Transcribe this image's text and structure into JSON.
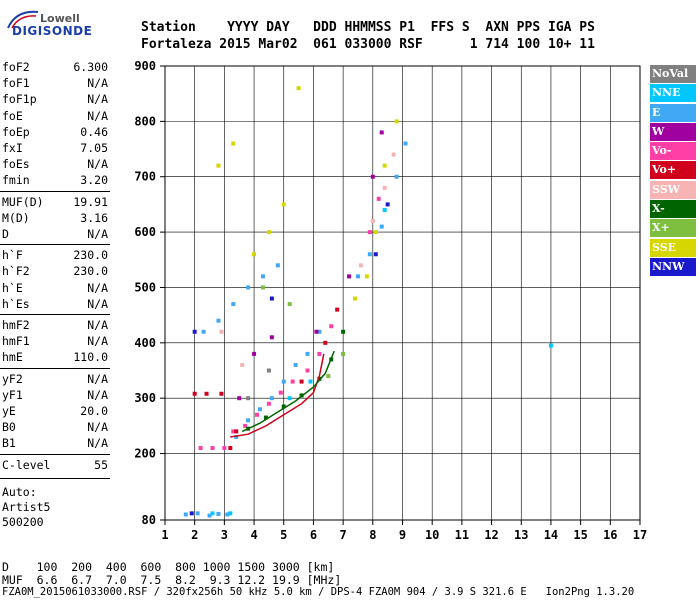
{
  "logo": {
    "top": "Lowell",
    "bottom": "DIGISONDE"
  },
  "header": {
    "line1": "Station    YYYY DAY   DDD HHMMSS P1  FFS S  AXN PPS IGA PS",
    "line2": "Fortaleza 2015 Mar02  061 033000 RSF      1 714 100 10+ 11"
  },
  "params": [
    {
      "k": "foF2",
      "v": "6.300"
    },
    {
      "k": "foF1",
      "v": "N/A"
    },
    {
      "k": "foF1p",
      "v": "N/A"
    },
    {
      "k": "foE",
      "v": "N/A"
    },
    {
      "k": "foEp",
      "v": "0.46"
    },
    {
      "k": "fxI",
      "v": "7.05"
    },
    {
      "k": "foEs",
      "v": "N/A"
    },
    {
      "k": "fmin",
      "v": "3.20"
    },
    {
      "k": "MUF(D)",
      "v": "19.91"
    },
    {
      "k": "M(D)",
      "v": "3.16"
    },
    {
      "k": "D",
      "v": "N/A"
    },
    {
      "k": "h`F",
      "v": "230.0"
    },
    {
      "k": "h`F2",
      "v": "230.0"
    },
    {
      "k": "h`E",
      "v": "N/A"
    },
    {
      "k": "h`Es",
      "v": "N/A"
    },
    {
      "k": "hmF2",
      "v": "N/A"
    },
    {
      "k": "hmF1",
      "v": "N/A"
    },
    {
      "k": "hmE",
      "v": "110.0"
    },
    {
      "k": "yF2",
      "v": "N/A"
    },
    {
      "k": "yF1",
      "v": "N/A"
    },
    {
      "k": "yE",
      "v": "20.0"
    },
    {
      "k": "B0",
      "v": "N/A"
    },
    {
      "k": "B1",
      "v": "N/A"
    },
    {
      "k": "C-level",
      "v": "55"
    }
  ],
  "autoscale": {
    "line1": "Auto:",
    "line2": "Artist5",
    "line3": "500200"
  },
  "legend": [
    {
      "label": "NoVal",
      "color": "#808080"
    },
    {
      "label": "NNE",
      "color": "#00c8ff"
    },
    {
      "label": "E",
      "color": "#3fa9f5"
    },
    {
      "label": "W",
      "color": "#a000a0"
    },
    {
      "label": "Vo-",
      "color": "#ff3fa6"
    },
    {
      "label": "Vo+",
      "color": "#d0001c"
    },
    {
      "label": "SSW",
      "color": "#f7b4b4"
    },
    {
      "label": "X-",
      "color": "#006400"
    },
    {
      "label": "X+",
      "color": "#7fbf3f"
    },
    {
      "label": "SSE",
      "color": "#d7d700"
    },
    {
      "label": "NNW",
      "color": "#1a1acc"
    }
  ],
  "bottom": {
    "d_row": "D    100  200  400  600  800 1000 1500 3000 [km]",
    "muf_row": "MUF  6.6  6.7  7.0  7.5  8.2  9.3 12.2 19.9 [MHz]"
  },
  "footer": "FZA0M_2015061033000.RSF / 320fx256h 50 kHz 5.0 km / DPS-4 FZA0M 904 / 3.9 S 321.6 E   Ion2Png 1.3.20",
  "chart_data": {
    "type": "scatter",
    "xlim": [
      1,
      17
    ],
    "ylim": [
      80,
      900
    ],
    "x_ticks": [
      1,
      2,
      3,
      4,
      5,
      6,
      7,
      8,
      9,
      10,
      11,
      12,
      13,
      14,
      15,
      16,
      17
    ],
    "y_ticks": [
      80,
      200,
      300,
      400,
      500,
      600,
      700,
      800,
      900
    ],
    "grid": true,
    "series": [
      {
        "name": "E",
        "color": "#3fa9f5",
        "points": [
          [
            1.7,
            90
          ],
          [
            2.1,
            92
          ],
          [
            2.5,
            88
          ],
          [
            2.8,
            91
          ],
          [
            3.1,
            90
          ],
          [
            3.4,
            230
          ],
          [
            3.8,
            260
          ],
          [
            4.2,
            280
          ],
          [
            4.6,
            300
          ],
          [
            5.0,
            330
          ],
          [
            5.4,
            360
          ],
          [
            5.8,
            380
          ],
          [
            6.2,
            420
          ],
          [
            2.3,
            420
          ],
          [
            2.8,
            440
          ],
          [
            3.3,
            470
          ],
          [
            3.8,
            500
          ],
          [
            4.3,
            520
          ],
          [
            4.8,
            540
          ],
          [
            7.5,
            520
          ],
          [
            7.9,
            560
          ],
          [
            8.3,
            610
          ],
          [
            8.8,
            700
          ],
          [
            9.1,
            760
          ]
        ]
      },
      {
        "name": "Vo-",
        "color": "#ff3fa6",
        "points": [
          [
            2.2,
            210
          ],
          [
            2.6,
            210
          ],
          [
            3.0,
            210
          ],
          [
            3.3,
            240
          ],
          [
            3.7,
            250
          ],
          [
            4.1,
            270
          ],
          [
            4.5,
            290
          ],
          [
            4.9,
            310
          ],
          [
            5.3,
            330
          ],
          [
            5.8,
            350
          ],
          [
            6.2,
            380
          ],
          [
            6.6,
            430
          ],
          [
            7.9,
            600
          ],
          [
            8.2,
            660
          ]
        ]
      },
      {
        "name": "Vo+",
        "color": "#d0001c",
        "points": [
          [
            2.0,
            308
          ],
          [
            2.4,
            308
          ],
          [
            2.9,
            308
          ],
          [
            3.2,
            210
          ],
          [
            3.4,
            240
          ],
          [
            5.6,
            330
          ],
          [
            6.4,
            400
          ],
          [
            6.8,
            460
          ]
        ]
      },
      {
        "name": "SSE",
        "color": "#d7d700",
        "points": [
          [
            2.8,
            720
          ],
          [
            3.3,
            760
          ],
          [
            4.0,
            560
          ],
          [
            4.5,
            600
          ],
          [
            5.0,
            650
          ],
          [
            5.5,
            860
          ],
          [
            7.4,
            480
          ],
          [
            7.8,
            520
          ],
          [
            8.1,
            600
          ],
          [
            8.4,
            720
          ],
          [
            8.8,
            800
          ]
        ]
      },
      {
        "name": "X-",
        "color": "#006400",
        "points": [
          [
            3.8,
            245
          ],
          [
            4.4,
            265
          ],
          [
            5.0,
            285
          ],
          [
            5.6,
            305
          ],
          [
            6.2,
            335
          ],
          [
            6.6,
            370
          ],
          [
            7.0,
            420
          ]
        ]
      },
      {
        "name": "SSW",
        "color": "#f7b4b4",
        "points": [
          [
            7.6,
            540
          ],
          [
            8.0,
            620
          ],
          [
            8.4,
            680
          ],
          [
            8.7,
            740
          ],
          [
            3.6,
            360
          ],
          [
            2.9,
            420
          ]
        ]
      },
      {
        "name": "W",
        "color": "#a000a0",
        "points": [
          [
            3.5,
            300
          ],
          [
            4.0,
            380
          ],
          [
            4.6,
            410
          ],
          [
            7.2,
            520
          ],
          [
            8.0,
            700
          ],
          [
            8.3,
            780
          ],
          [
            6.1,
            420
          ]
        ]
      },
      {
        "name": "NNW",
        "color": "#1a1acc",
        "points": [
          [
            2.0,
            420
          ],
          [
            8.1,
            560
          ],
          [
            8.5,
            650
          ],
          [
            4.6,
            480
          ],
          [
            1.9,
            92
          ]
        ]
      },
      {
        "name": "NNE",
        "color": "#00c8ff",
        "points": [
          [
            2.6,
            92
          ],
          [
            3.2,
            92
          ],
          [
            5.2,
            300
          ],
          [
            5.9,
            330
          ],
          [
            8.4,
            640
          ],
          [
            14.0,
            395
          ]
        ]
      },
      {
        "name": "X+",
        "color": "#7fbf3f",
        "points": [
          [
            6.5,
            340
          ],
          [
            7.0,
            380
          ],
          [
            5.2,
            470
          ],
          [
            4.3,
            500
          ]
        ]
      },
      {
        "name": "NoVal",
        "color": "#808080",
        "points": [
          [
            3.8,
            300
          ],
          [
            4.5,
            350
          ]
        ]
      }
    ],
    "traces": [
      {
        "name": "Vo+",
        "color": "#d0001c",
        "points": [
          [
            3.2,
            230
          ],
          [
            3.8,
            235
          ],
          [
            4.4,
            250
          ],
          [
            5.0,
            270
          ],
          [
            5.6,
            290
          ],
          [
            6.0,
            310
          ],
          [
            6.2,
            340
          ],
          [
            6.35,
            380
          ]
        ]
      },
      {
        "name": "X-",
        "color": "#006400",
        "points": [
          [
            3.6,
            240
          ],
          [
            4.2,
            255
          ],
          [
            4.8,
            275
          ],
          [
            5.4,
            295
          ],
          [
            6.0,
            320
          ],
          [
            6.4,
            345
          ],
          [
            6.7,
            385
          ]
        ]
      }
    ]
  }
}
